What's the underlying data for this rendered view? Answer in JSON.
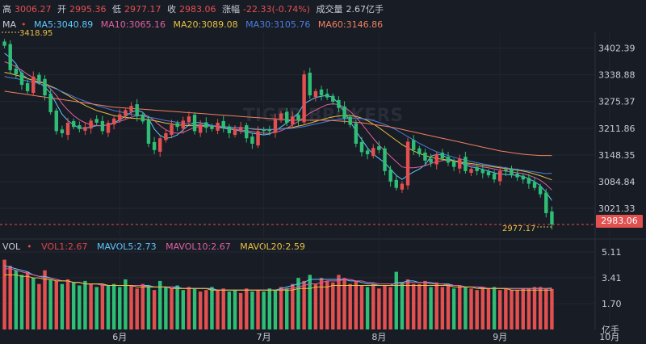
{
  "header": {
    "high_label": "高",
    "high": "3006.27",
    "open_label": "开",
    "open": "2995.36",
    "low_label": "低",
    "low": "2977.17",
    "close_label": "收",
    "close": "2983.06",
    "change_label": "涨幅",
    "change": "-22.33(-0.74%)",
    "volume_label": "成交量",
    "volume": "2.67亿手"
  },
  "ma_legend": {
    "title": "MA",
    "items": [
      {
        "label": "MA5:3040.89",
        "color": "#5cc8ff"
      },
      {
        "label": "MA10:3065.16",
        "color": "#e060a0"
      },
      {
        "label": "MA20:3089.08",
        "color": "#e8c040"
      },
      {
        "label": "MA30:3105.76",
        "color": "#4a7ee0"
      },
      {
        "label": "MA60:3146.86",
        "color": "#f08060"
      }
    ]
  },
  "vol_legend": {
    "title": "VOL",
    "items": [
      {
        "label": "VOL1:2.67",
        "color": "#e04646"
      },
      {
        "label": "MAVOL5:2.73",
        "color": "#5cc8ff"
      },
      {
        "label": "MAVOL10:2.67",
        "color": "#e060a0"
      },
      {
        "label": "MAVOL20:2.59",
        "color": "#e8c040"
      }
    ]
  },
  "watermark": "TIGER BROKERS",
  "chart_data": [
    {
      "type": "candlestick",
      "title": "",
      "y_ticks": [
        "3402.39",
        "3338.88",
        "3275.37",
        "3211.86",
        "3148.35",
        "3084.84",
        "3021.33"
      ],
      "ylim": [
        2960,
        3440
      ],
      "x_tick_labels": [
        "6月",
        "7月",
        "8月",
        "9月",
        "10月"
      ],
      "x_tick_positions": [
        20,
        45,
        65,
        86,
        105
      ],
      "max_annotation": "3418.95",
      "min_annotation": "2977.17",
      "last_price": "2983.06",
      "close": [
        3408,
        3350,
        3340,
        3315,
        3300,
        3335,
        3325,
        3290,
        3250,
        3205,
        3200,
        3225,
        3215,
        3210,
        3215,
        3230,
        3225,
        3205,
        3225,
        3235,
        3245,
        3255,
        3265,
        3240,
        3228,
        3175,
        3160,
        3188,
        3200,
        3220,
        3215,
        3230,
        3240,
        3205,
        3222,
        3213,
        3210,
        3225,
        3212,
        3200,
        3210,
        3215,
        3188,
        3175,
        3205,
        3205,
        3205,
        3235,
        3247,
        3225,
        3240,
        3230,
        3340,
        3290,
        3300,
        3290,
        3285,
        3275,
        3260,
        3235,
        3220,
        3175,
        3155,
        3150,
        3165,
        3160,
        3110,
        3085,
        3070,
        3080,
        3180,
        3160,
        3150,
        3135,
        3130,
        3150,
        3140,
        3130,
        3120,
        3140,
        3110,
        3115,
        3110,
        3105,
        3100,
        3090,
        3110,
        3110,
        3100,
        3095,
        3090,
        3080,
        3070,
        3055,
        3010,
        2983
      ],
      "ma5": [
        3390,
        3380,
        3365,
        3340,
        3330,
        3325,
        3320,
        3310,
        3295,
        3270,
        3245,
        3230,
        3220,
        3212,
        3212,
        3215,
        3218,
        3218,
        3220,
        3225,
        3232,
        3240,
        3250,
        3255,
        3250,
        3235,
        3210,
        3195,
        3188,
        3190,
        3196,
        3208,
        3220,
        3226,
        3225,
        3222,
        3218,
        3215,
        3212,
        3210,
        3208,
        3205,
        3203,
        3200,
        3198,
        3196,
        3198,
        3205,
        3215,
        3225,
        3235,
        3248,
        3270,
        3278,
        3285,
        3288,
        3290,
        3285,
        3270,
        3250,
        3228,
        3205,
        3185,
        3165,
        3150,
        3140,
        3130,
        3115,
        3100,
        3090,
        3100,
        3108,
        3115,
        3125,
        3145,
        3150,
        3148,
        3140,
        3135,
        3130,
        3125,
        3120,
        3118,
        3114,
        3110,
        3106,
        3103,
        3102,
        3101,
        3100,
        3097,
        3092,
        3085,
        3075,
        3060,
        3040
      ],
      "ma10": [
        3370,
        3365,
        3358,
        3350,
        3340,
        3332,
        3325,
        3318,
        3305,
        3290,
        3270,
        3255,
        3242,
        3232,
        3225,
        3220,
        3218,
        3218,
        3220,
        3223,
        3228,
        3233,
        3238,
        3242,
        3244,
        3240,
        3230,
        3218,
        3208,
        3202,
        3200,
        3202,
        3208,
        3214,
        3216,
        3217,
        3217,
        3216,
        3214,
        3212,
        3210,
        3208,
        3206,
        3204,
        3202,
        3200,
        3200,
        3202,
        3206,
        3212,
        3220,
        3228,
        3238,
        3248,
        3255,
        3262,
        3268,
        3270,
        3268,
        3262,
        3252,
        3238,
        3222,
        3205,
        3188,
        3172,
        3158,
        3145,
        3132,
        3120,
        3118,
        3118,
        3120,
        3123,
        3128,
        3132,
        3135,
        3136,
        3135,
        3132,
        3128,
        3125,
        3122,
        3120,
        3118,
        3115,
        3112,
        3110,
        3108,
        3106,
        3104,
        3100,
        3095,
        3088,
        3078,
        3065
      ],
      "ma20": [
        3345,
        3342,
        3338,
        3335,
        3330,
        3326,
        3322,
        3318,
        3312,
        3306,
        3298,
        3290,
        3282,
        3274,
        3266,
        3260,
        3254,
        3250,
        3246,
        3242,
        3240,
        3238,
        3236,
        3235,
        3234,
        3232,
        3230,
        3227,
        3224,
        3222,
        3220,
        3219,
        3218,
        3218,
        3218,
        3218,
        3218,
        3217,
        3216,
        3215,
        3214,
        3213,
        3212,
        3210,
        3209,
        3208,
        3208,
        3209,
        3210,
        3212,
        3214,
        3217,
        3220,
        3224,
        3228,
        3232,
        3236,
        3239,
        3241,
        3242,
        3242,
        3240,
        3236,
        3230,
        3222,
        3213,
        3203,
        3193,
        3183,
        3173,
        3165,
        3158,
        3152,
        3147,
        3143,
        3140,
        3138,
        3136,
        3134,
        3132,
        3130,
        3128,
        3126,
        3124,
        3122,
        3120,
        3118,
        3116,
        3114,
        3112,
        3110,
        3107,
        3103,
        3099,
        3094,
        3089
      ],
      "ma30": [
        3335,
        3332,
        3330,
        3327,
        3324,
        3321,
        3318,
        3314,
        3310,
        3305,
        3299,
        3293,
        3287,
        3281,
        3276,
        3271,
        3266,
        3262,
        3258,
        3254,
        3251,
        3248,
        3245,
        3243,
        3241,
        3238,
        3236,
        3233,
        3230,
        3228,
        3226,
        3224,
        3222,
        3221,
        3220,
        3219,
        3218,
        3217,
        3216,
        3215,
        3214,
        3213,
        3212,
        3211,
        3210,
        3209,
        3209,
        3209,
        3210,
        3211,
        3212,
        3214,
        3216,
        3219,
        3222,
        3225,
        3228,
        3231,
        3233,
        3235,
        3236,
        3236,
        3235,
        3233,
        3230,
        3226,
        3221,
        3215,
        3208,
        3200,
        3192,
        3184,
        3176,
        3169,
        3162,
        3156,
        3151,
        3147,
        3143,
        3139,
        3136,
        3133,
        3130,
        3127,
        3125,
        3122,
        3120,
        3118,
        3116,
        3114,
        3112,
        3110,
        3108,
        3106,
        3104,
        3105
      ],
      "ma60": [
        3300,
        3298,
        3296,
        3294,
        3292,
        3290,
        3288,
        3286,
        3284,
        3282,
        3280,
        3278,
        3276,
        3274,
        3272,
        3270,
        3268,
        3266,
        3264,
        3262,
        3261,
        3260,
        3259,
        3258,
        3257,
        3256,
        3255,
        3254,
        3253,
        3252,
        3251,
        3250,
        3249,
        3248,
        3247,
        3246,
        3245,
        3244,
        3243,
        3242,
        3241,
        3240,
        3239,
        3238,
        3237,
        3236,
        3235,
        3234,
        3233,
        3232,
        3231,
        3231,
        3231,
        3231,
        3231,
        3231,
        3231,
        3230,
        3229,
        3228,
        3227,
        3226,
        3225,
        3223,
        3221,
        3219,
        3217,
        3215,
        3212,
        3209,
        3206,
        3203,
        3200,
        3197,
        3194,
        3191,
        3188,
        3185,
        3182,
        3179,
        3176,
        3173,
        3170,
        3167,
        3164,
        3161,
        3158,
        3156,
        3154,
        3152,
        3150,
        3149,
        3148,
        3147,
        3147,
        3147
      ]
    },
    {
      "type": "bar",
      "title": "",
      "y_ticks": [
        "5.11",
        "3.41",
        "1.70"
      ],
      "unit_label": "亿手",
      "ylim": [
        0,
        5.11
      ],
      "values": [
        4.6,
        4.2,
        3.9,
        3.6,
        3.8,
        3.4,
        3.0,
        3.9,
        3.3,
        3.2,
        3.0,
        3.3,
        3.1,
        2.9,
        3.2,
        3.0,
        2.8,
        3.0,
        2.9,
        3.0,
        2.8,
        3.3,
        2.9,
        2.7,
        3.0,
        2.9,
        2.6,
        3.2,
        2.8,
        2.7,
        2.9,
        2.6,
        2.8,
        2.7,
        2.5,
        2.6,
        2.8,
        2.6,
        2.7,
        2.5,
        2.6,
        2.4,
        2.7,
        2.5,
        2.6,
        2.5,
        2.7,
        2.6,
        2.8,
        2.7,
        3.0,
        3.4,
        3.2,
        3.6,
        3.0,
        3.4,
        3.2,
        3.1,
        3.6,
        3.4,
        3.0,
        3.2,
        2.9,
        2.8,
        3.0,
        2.7,
        2.9,
        2.8,
        3.8,
        3.1,
        3.3,
        3.0,
        3.0,
        3.2,
        2.8,
        3.1,
        2.8,
        3.0,
        2.7,
        2.9,
        2.8,
        2.7,
        2.6,
        2.8,
        2.7,
        2.8,
        2.6,
        2.7,
        2.6,
        2.6,
        2.7,
        2.7,
        2.8,
        2.8,
        2.7,
        2.67
      ],
      "up": [
        false,
        false,
        true,
        true,
        false,
        true,
        false,
        false,
        true,
        false,
        true,
        false,
        true,
        true,
        true,
        false,
        true,
        false,
        true,
        true,
        true,
        true,
        false,
        false,
        false,
        true,
        false,
        true,
        true,
        false,
        true,
        true,
        false,
        true,
        false,
        false,
        true,
        false,
        false,
        true,
        true,
        false,
        false,
        true,
        false,
        true,
        true,
        true,
        false,
        true,
        false,
        true,
        false,
        true,
        false,
        false,
        false,
        false,
        false,
        false,
        false,
        false,
        false,
        true,
        false,
        false,
        false,
        false,
        true,
        true,
        false,
        false,
        false,
        false,
        true,
        false,
        false,
        false,
        true,
        false,
        true,
        false,
        false,
        false,
        false,
        true,
        false,
        false,
        false,
        false,
        false,
        false,
        false,
        false,
        false,
        false
      ],
      "mavol5": [
        4.2,
        4.1,
        4.0,
        3.9,
        3.8,
        3.6,
        3.5,
        3.5,
        3.4,
        3.3,
        3.2,
        3.2,
        3.1,
        3.1,
        3.0,
        3.0,
        3.0,
        3.0,
        2.9,
        2.9,
        2.9,
        2.9,
        2.9,
        2.9,
        2.9,
        2.9,
        2.8,
        2.8,
        2.8,
        2.8,
        2.8,
        2.7,
        2.7,
        2.7,
        2.7,
        2.7,
        2.7,
        2.6,
        2.6,
        2.6,
        2.6,
        2.6,
        2.6,
        2.6,
        2.6,
        2.6,
        2.6,
        2.6,
        2.7,
        2.8,
        2.9,
        3.0,
        3.1,
        3.3,
        3.3,
        3.3,
        3.3,
        3.3,
        3.3,
        3.3,
        3.2,
        3.2,
        3.1,
        3.0,
        3.0,
        2.9,
        2.9,
        2.9,
        3.1,
        3.1,
        3.2,
        3.2,
        3.1,
        3.1,
        3.1,
        3.0,
        3.0,
        3.0,
        2.9,
        2.9,
        2.8,
        2.8,
        2.8,
        2.7,
        2.7,
        2.7,
        2.7,
        2.7,
        2.7,
        2.7,
        2.7,
        2.7,
        2.7,
        2.7,
        2.7,
        2.73
      ],
      "mavol10": [
        4.0,
        4.0,
        3.9,
        3.8,
        3.7,
        3.6,
        3.5,
        3.4,
        3.4,
        3.3,
        3.2,
        3.2,
        3.1,
        3.1,
        3.0,
        3.0,
        3.0,
        2.9,
        2.9,
        2.9,
        2.9,
        2.9,
        2.9,
        2.9,
        2.9,
        2.8,
        2.8,
        2.8,
        2.8,
        2.8,
        2.7,
        2.7,
        2.7,
        2.7,
        2.7,
        2.7,
        2.6,
        2.6,
        2.6,
        2.6,
        2.6,
        2.6,
        2.6,
        2.6,
        2.6,
        2.6,
        2.6,
        2.6,
        2.6,
        2.7,
        2.7,
        2.8,
        2.9,
        3.0,
        3.0,
        3.1,
        3.2,
        3.2,
        3.2,
        3.3,
        3.3,
        3.2,
        3.2,
        3.1,
        3.1,
        3.0,
        3.0,
        3.0,
        3.0,
        3.0,
        3.1,
        3.1,
        3.1,
        3.1,
        3.0,
        3.0,
        3.0,
        2.9,
        2.9,
        2.9,
        2.8,
        2.8,
        2.8,
        2.8,
        2.7,
        2.7,
        2.7,
        2.7,
        2.7,
        2.7,
        2.7,
        2.7,
        2.7,
        2.7,
        2.7,
        2.67
      ],
      "mavol20": [
        3.6,
        3.6,
        3.6,
        3.5,
        3.5,
        3.4,
        3.4,
        3.3,
        3.3,
        3.2,
        3.2,
        3.2,
        3.1,
        3.1,
        3.0,
        3.0,
        3.0,
        3.0,
        2.9,
        2.9,
        2.9,
        2.9,
        2.9,
        2.8,
        2.8,
        2.8,
        2.8,
        2.8,
        2.8,
        2.7,
        2.7,
        2.7,
        2.7,
        2.7,
        2.7,
        2.7,
        2.6,
        2.6,
        2.6,
        2.6,
        2.6,
        2.6,
        2.6,
        2.6,
        2.6,
        2.6,
        2.6,
        2.6,
        2.6,
        2.6,
        2.6,
        2.7,
        2.7,
        2.7,
        2.8,
        2.8,
        2.8,
        2.9,
        2.9,
        2.9,
        2.9,
        2.9,
        2.9,
        2.9,
        2.9,
        2.9,
        2.9,
        2.9,
        2.9,
        2.9,
        2.9,
        2.9,
        2.9,
        2.9,
        2.9,
        2.9,
        2.9,
        2.9,
        2.8,
        2.8,
        2.8,
        2.8,
        2.7,
        2.7,
        2.7,
        2.7,
        2.7,
        2.7,
        2.6,
        2.6,
        2.6,
        2.6,
        2.6,
        2.6,
        2.6,
        2.59
      ]
    }
  ],
  "colors": {
    "up": "#e25050",
    "down": "#2fbe75",
    "background": "#181c25",
    "grid": "#2a2f3a",
    "axis_text": "#c8ccd4"
  }
}
